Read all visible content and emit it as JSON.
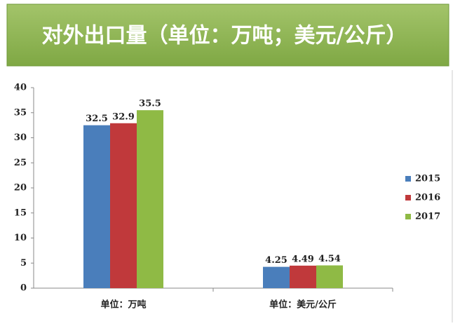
{
  "chart_data": {
    "type": "bar",
    "title": "对外出口量（单位：万吨；美元/公斤）",
    "categories": [
      "单位：万吨",
      "单位：美元/公斤"
    ],
    "series": [
      {
        "name": "2015",
        "color": "#4a7ebb",
        "values": [
          32.5,
          4.25
        ]
      },
      {
        "name": "2016",
        "color": "#c0393b",
        "values": [
          32.9,
          4.49
        ]
      },
      {
        "name": "2017",
        "color": "#8fba45",
        "values": [
          35.5,
          4.54
        ]
      }
    ],
    "ylim": [
      0,
      40
    ],
    "yticks": [
      0,
      5,
      10,
      15,
      20,
      25,
      30,
      35,
      40
    ],
    "grid": false,
    "legend": "right"
  }
}
